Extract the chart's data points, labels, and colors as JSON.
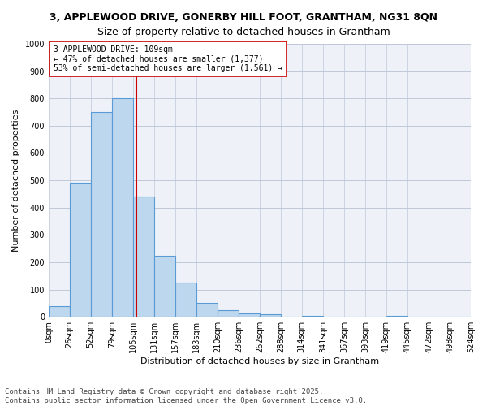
{
  "title1": "3, APPLEWOOD DRIVE, GONERBY HILL FOOT, GRANTHAM, NG31 8QN",
  "title2": "Size of property relative to detached houses in Grantham",
  "xlabel": "Distribution of detached houses by size in Grantham",
  "ylabel": "Number of detached properties",
  "bar_values": [
    40,
    490,
    750,
    800,
    440,
    225,
    125,
    50,
    25,
    12,
    10,
    0,
    5,
    0,
    0,
    0,
    5,
    0,
    0,
    0
  ],
  "bin_edges": [
    0,
    26,
    52,
    79,
    105,
    131,
    157,
    183,
    210,
    236,
    262,
    288,
    314,
    341,
    367,
    393,
    419,
    445,
    472,
    498,
    524
  ],
  "bin_labels": [
    "0sqm",
    "26sqm",
    "52sqm",
    "79sqm",
    "105sqm",
    "131sqm",
    "157sqm",
    "183sqm",
    "210sqm",
    "236sqm",
    "262sqm",
    "288sqm",
    "314sqm",
    "341sqm",
    "367sqm",
    "393sqm",
    "419sqm",
    "445sqm",
    "472sqm",
    "498sqm",
    "524sqm"
  ],
  "bar_color": "#bdd7ee",
  "bar_edge_color": "#5b9bd5",
  "vline_x": 109,
  "vline_color": "#cc0000",
  "annotation_text": "3 APPLEWOOD DRIVE: 109sqm\n← 47% of detached houses are smaller (1,377)\n53% of semi-detached houses are larger (1,561) →",
  "annotation_box_color": "#cc0000",
  "ylim": [
    0,
    1000
  ],
  "yticks": [
    0,
    100,
    200,
    300,
    400,
    500,
    600,
    700,
    800,
    900,
    1000
  ],
  "grid_color": "#c0c8d8",
  "background_color": "#eef2f8",
  "footer_text": "Contains HM Land Registry data © Crown copyright and database right 2025.\nContains public sector information licensed under the Open Government Licence v3.0.",
  "title_fontsize": 9,
  "subtitle_fontsize": 9,
  "annotation_fontsize": 7,
  "axis_label_fontsize": 8,
  "tick_fontsize": 7,
  "footer_fontsize": 6.5
}
